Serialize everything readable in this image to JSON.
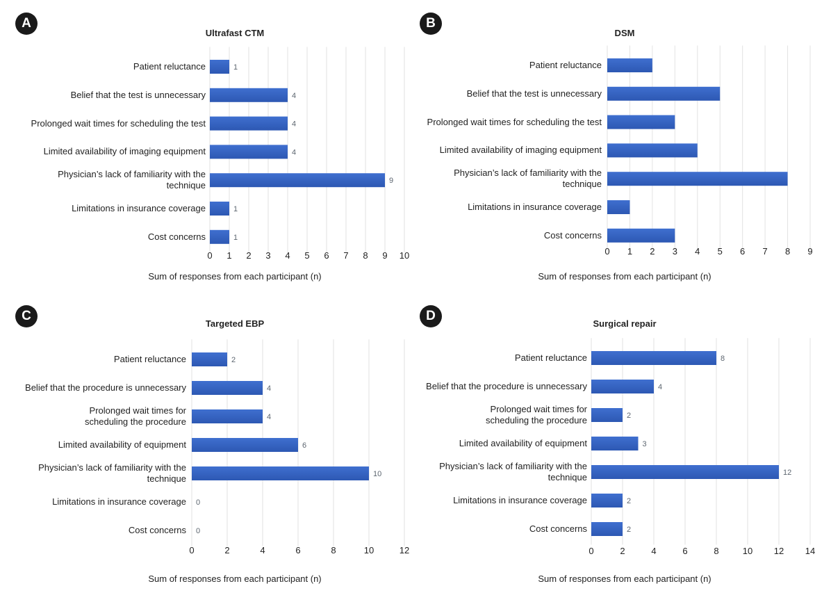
{
  "colors": {
    "bar": "#3f6fcf",
    "bar_dark": "#2d58b3",
    "grid": "#e2e2e2",
    "badge": "#1a1a1a",
    "value_label": "#5d6670"
  },
  "chart_data": [
    {
      "id": "A",
      "badge": "A",
      "type": "bar",
      "orientation": "horizontal",
      "title": "Ultrafast CTM",
      "xlabel": "Sum of responses from each participant (n)",
      "categories": [
        [
          "Patient reluctance"
        ],
        [
          "Belief that the test is unnecessary"
        ],
        [
          "Prolonged wait times for scheduling the test"
        ],
        [
          "Limited availability of imaging equipment"
        ],
        [
          "Physician’s lack of familiarity with the",
          "technique"
        ],
        [
          "Limitations in insurance coverage"
        ],
        [
          "Cost concerns"
        ]
      ],
      "values": [
        1,
        4,
        4,
        4,
        9,
        1,
        1
      ],
      "value_labels": [
        "1",
        "4",
        "4",
        "4",
        "9",
        "1",
        "1"
      ],
      "xlim": [
        0,
        10
      ],
      "xticks": [
        "0",
        "1",
        "2",
        "3",
        "4",
        "5",
        "6",
        "7",
        "8",
        "9",
        "10"
      ],
      "tick_values": [
        0,
        1,
        2,
        3,
        4,
        5,
        6,
        7,
        8,
        9,
        10
      ],
      "grid": true
    },
    {
      "id": "B",
      "badge": "B",
      "type": "bar",
      "orientation": "horizontal",
      "title": "DSM",
      "xlabel": "Sum of responses from each participant (n)",
      "categories": [
        [
          "Patient reluctance"
        ],
        [
          "Belief that the test is unnecessary"
        ],
        [
          "Prolonged wait times for scheduling the test"
        ],
        [
          "Limited availability of imaging equipment"
        ],
        [
          "Physician’s lack of familiarity with the",
          "technique"
        ],
        [
          "Limitations in insurance coverage"
        ],
        [
          "Cost concerns"
        ]
      ],
      "values": [
        2,
        5,
        3,
        4,
        8,
        1,
        3
      ],
      "value_labels": [],
      "xlim": [
        0,
        9
      ],
      "xticks": [
        "0",
        "1",
        "2",
        "3",
        "4",
        "5",
        "6",
        "7",
        "8",
        "9"
      ],
      "tick_values": [
        0,
        1,
        2,
        3,
        4,
        5,
        6,
        7,
        8,
        9
      ],
      "grid": true
    },
    {
      "id": "C",
      "badge": "C",
      "type": "bar",
      "orientation": "horizontal",
      "title": "Targeted EBP",
      "xlabel": "Sum of responses from each participant (n)",
      "categories": [
        [
          "Patient reluctance"
        ],
        [
          "Belief that the procedure is unnecessary"
        ],
        [
          "Prolonged wait times for",
          "scheduling the procedure"
        ],
        [
          "Limited availability of equipment"
        ],
        [
          "Physician’s lack of familiarity with the",
          "technique"
        ],
        [
          "Limitations in insurance coverage"
        ],
        [
          "Cost concerns"
        ]
      ],
      "values": [
        2,
        4,
        4,
        6,
        10,
        0,
        0
      ],
      "value_labels": [
        "2",
        "4",
        "4",
        "6",
        "10",
        "0",
        "0"
      ],
      "xlim": [
        0,
        12
      ],
      "xticks": [
        "0",
        "2",
        "4",
        "6",
        "8",
        "10",
        "12"
      ],
      "tick_values": [
        0,
        2,
        4,
        6,
        8,
        10,
        12
      ],
      "grid": true
    },
    {
      "id": "D",
      "badge": "D",
      "type": "bar",
      "orientation": "horizontal",
      "title": "Surgical repair",
      "xlabel": "Sum of responses from each participant (n)",
      "categories": [
        [
          "Patient reluctance"
        ],
        [
          "Belief that the procedure is unnecessary"
        ],
        [
          "Prolonged wait times for",
          "scheduling the procedure"
        ],
        [
          "Limited availability of equipment"
        ],
        [
          "Physician’s lack of familiarity with the",
          "technique"
        ],
        [
          "Limitations in insurance coverage"
        ],
        [
          "Cost concerns"
        ]
      ],
      "values": [
        8,
        4,
        2,
        3,
        12,
        2,
        2
      ],
      "value_labels": [
        "8",
        "4",
        "2",
        "3",
        "12",
        "2",
        "2"
      ],
      "xlim": [
        0,
        14
      ],
      "xticks": [
        "0",
        "2",
        "4",
        "6",
        "8",
        "10",
        "12",
        "14"
      ],
      "tick_values": [
        0,
        2,
        4,
        6,
        8,
        10,
        12,
        14
      ],
      "grid": true
    }
  ]
}
